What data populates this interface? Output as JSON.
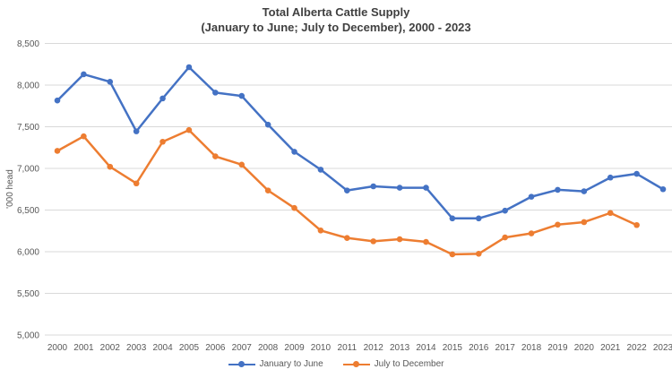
{
  "chart_data": {
    "type": "line",
    "title": "Total Alberta Cattle Supply",
    "subtitle": "(January to June; July to December), 2000 - 2023",
    "xlabel": "",
    "ylabel": "'000 head",
    "ylim": [
      5000,
      8500
    ],
    "yticks": [
      "5,000",
      "5,500",
      "6,000",
      "6,500",
      "7,000",
      "7,500",
      "8,000",
      "8,500"
    ],
    "grid": true,
    "legend": "bottom",
    "categories": [
      "2000",
      "2001",
      "2002",
      "2003",
      "2004",
      "2005",
      "2006",
      "2007",
      "2008",
      "2009",
      "2010",
      "2011",
      "2012",
      "2013",
      "2014",
      "2015",
      "2016",
      "2017",
      "2018",
      "2019",
      "2020",
      "2021",
      "2022",
      "2023"
    ],
    "series": [
      {
        "name": "January to June",
        "color": "#4472C4",
        "values": [
          7815,
          8130,
          8040,
          7445,
          7840,
          8215,
          7910,
          7870,
          7525,
          7200,
          6985,
          6735,
          6785,
          6768,
          6768,
          6400,
          6400,
          6493,
          6660,
          6743,
          6725,
          6890,
          6935,
          6750
        ]
      },
      {
        "name": "July to December",
        "color": "#ED7D31",
        "values": [
          7210,
          7385,
          7020,
          6820,
          7320,
          7460,
          7145,
          7045,
          6735,
          6525,
          6255,
          6165,
          6125,
          6150,
          6118,
          5968,
          5975,
          6171,
          6220,
          6325,
          6355,
          6465,
          6320,
          null
        ]
      }
    ]
  }
}
